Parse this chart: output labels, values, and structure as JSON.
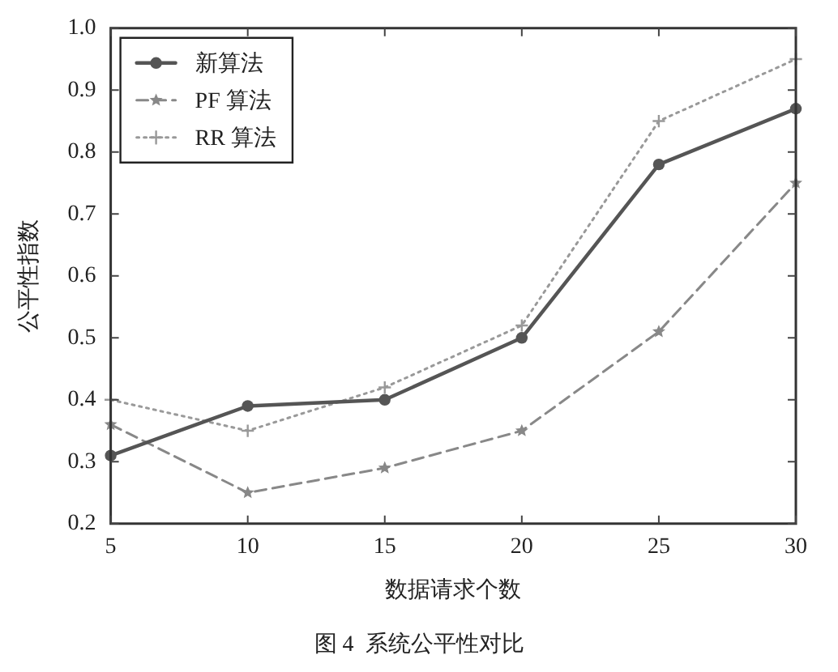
{
  "chart_data": {
    "type": "line",
    "xlabel": "数据请求个数",
    "ylabel": "公平性指数",
    "annotations": [
      "图 4  系统公平性对比"
    ],
    "x": [
      5,
      10,
      15,
      20,
      25,
      30
    ],
    "series": [
      {
        "name": "新算法",
        "color": "#555555",
        "values": [
          0.31,
          0.39,
          0.4,
          0.5,
          0.78,
          0.87
        ],
        "marker": "circle",
        "line_style": "solid"
      },
      {
        "name": "PF 算法",
        "color": "#888888",
        "values": [
          0.36,
          0.25,
          0.29,
          0.35,
          0.51,
          0.75
        ],
        "marker": "star",
        "line_style": "dashed"
      },
      {
        "name": "RR 算法",
        "color": "#999999",
        "values": [
          0.4,
          0.35,
          0.42,
          0.52,
          0.85,
          0.95
        ],
        "marker": "cross",
        "line_style": "dotted"
      }
    ],
    "xlim": [
      5,
      30
    ],
    "xticks": [
      5,
      10,
      15,
      20,
      25,
      30
    ],
    "ylim": [
      0.2,
      1.0
    ],
    "yticks": [
      0.2,
      0.3,
      0.4,
      0.5,
      0.6,
      0.7,
      0.8,
      0.9,
      {
        "value": 1.0,
        "label": "1.0"
      }
    ],
    "grid": false,
    "legend": "top left"
  }
}
